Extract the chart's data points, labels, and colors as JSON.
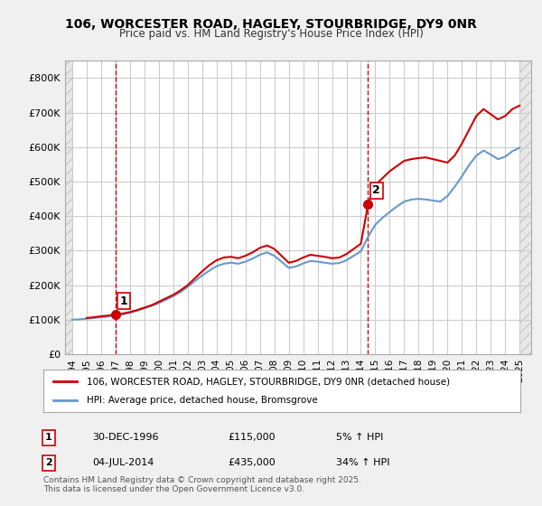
{
  "title": "106, WORCESTER ROAD, HAGLEY, STOURBRIDGE, DY9 0NR",
  "subtitle": "Price paid vs. HM Land Registry's House Price Index (HPI)",
  "ylabel_ticks": [
    "£0",
    "£100K",
    "£200K",
    "£300K",
    "£400K",
    "£500K",
    "£600K",
    "£700K",
    "£800K"
  ],
  "ytick_values": [
    0,
    100000,
    200000,
    300000,
    400000,
    500000,
    600000,
    700000,
    800000
  ],
  "ylim": [
    0,
    850000
  ],
  "xlim_min": 1993.5,
  "xlim_max": 2025.8,
  "background_color": "#f0f0f0",
  "plot_bg_color": "#ffffff",
  "hatch_color": "#d0d0d0",
  "grid_color": "#cccccc",
  "purchase_dates": [
    1996.99,
    2014.5
  ],
  "purchase_labels": [
    "1",
    "2"
  ],
  "purchase_prices": [
    115000,
    435000
  ],
  "red_line_color": "#cc0000",
  "blue_line_color": "#6699cc",
  "vline_color": "#cc0000",
  "legend_entries": [
    "106, WORCESTER ROAD, HAGLEY, STOURBRIDGE, DY9 0NR (detached house)",
    "HPI: Average price, detached house, Bromsgrove"
  ],
  "annotation_rows": [
    {
      "num": "1",
      "date": "30-DEC-1996",
      "price": "£115,000",
      "hpi": "5% ↑ HPI"
    },
    {
      "num": "2",
      "date": "04-JUL-2014",
      "price": "£435,000",
      "hpi": "34% ↑ HPI"
    }
  ],
  "footnote": "Contains HM Land Registry data © Crown copyright and database right 2025.\nThis data is licensed under the Open Government Licence v3.0.",
  "red_hpi_data_x": [
    1995.0,
    1995.5,
    1996.0,
    1996.5,
    1996.99,
    1997.5,
    1998.0,
    1998.5,
    1999.0,
    1999.5,
    2000.0,
    2000.5,
    2001.0,
    2001.5,
    2002.0,
    2002.5,
    2003.0,
    2003.5,
    2004.0,
    2004.5,
    2005.0,
    2005.5,
    2006.0,
    2006.5,
    2007.0,
    2007.5,
    2008.0,
    2008.5,
    2009.0,
    2009.5,
    2010.0,
    2010.5,
    2011.0,
    2011.5,
    2012.0,
    2012.5,
    2013.0,
    2013.5,
    2014.0,
    2014.5,
    2015.0,
    2015.5,
    2016.0,
    2016.5,
    2017.0,
    2017.5,
    2018.0,
    2018.5,
    2019.0,
    2019.5,
    2020.0,
    2020.5,
    2021.0,
    2021.5,
    2022.0,
    2022.5,
    2023.0,
    2023.5,
    2024.0,
    2024.5,
    2025.0
  ],
  "red_hpi_data_y": [
    105000,
    107000,
    110000,
    112000,
    115000,
    118000,
    122000,
    128000,
    135000,
    142000,
    152000,
    162000,
    172000,
    185000,
    200000,
    220000,
    240000,
    258000,
    272000,
    280000,
    282000,
    278000,
    285000,
    295000,
    308000,
    315000,
    305000,
    285000,
    265000,
    270000,
    280000,
    288000,
    285000,
    282000,
    278000,
    280000,
    290000,
    305000,
    320000,
    435000,
    490000,
    510000,
    530000,
    545000,
    560000,
    565000,
    568000,
    570000,
    565000,
    560000,
    555000,
    575000,
    610000,
    650000,
    690000,
    710000,
    695000,
    680000,
    690000,
    710000,
    720000
  ],
  "blue_hpi_data_x": [
    1994.0,
    1994.5,
    1995.0,
    1995.5,
    1996.0,
    1996.5,
    1997.0,
    1997.5,
    1998.0,
    1998.5,
    1999.0,
    1999.5,
    2000.0,
    2000.5,
    2001.0,
    2001.5,
    2002.0,
    2002.5,
    2003.0,
    2003.5,
    2004.0,
    2004.5,
    2005.0,
    2005.5,
    2006.0,
    2006.5,
    2007.0,
    2007.5,
    2008.0,
    2008.5,
    2009.0,
    2009.5,
    2010.0,
    2010.5,
    2011.0,
    2011.5,
    2012.0,
    2012.5,
    2013.0,
    2013.5,
    2014.0,
    2014.5,
    2015.0,
    2015.5,
    2016.0,
    2016.5,
    2017.0,
    2017.5,
    2018.0,
    2018.5,
    2019.0,
    2019.5,
    2020.0,
    2020.5,
    2021.0,
    2021.5,
    2022.0,
    2022.5,
    2023.0,
    2023.5,
    2024.0,
    2024.5,
    2025.0
  ],
  "blue_hpi_data_y": [
    100000,
    101000,
    103000,
    105000,
    107000,
    109000,
    112000,
    115000,
    120000,
    126000,
    133000,
    140000,
    148000,
    158000,
    168000,
    180000,
    195000,
    212000,
    228000,
    242000,
    255000,
    262000,
    265000,
    262000,
    268000,
    277000,
    288000,
    295000,
    285000,
    268000,
    250000,
    254000,
    263000,
    270000,
    268000,
    265000,
    262000,
    264000,
    272000,
    285000,
    298000,
    340000,
    375000,
    395000,
    412000,
    428000,
    442000,
    448000,
    450000,
    448000,
    445000,
    442000,
    458000,
    485000,
    515000,
    548000,
    575000,
    590000,
    578000,
    565000,
    572000,
    588000,
    598000
  ]
}
